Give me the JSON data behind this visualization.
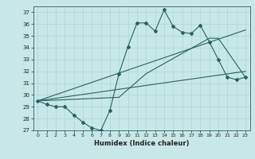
{
  "xlabel": "Humidex (Indice chaleur)",
  "ylabel": "",
  "xlim": [
    -0.5,
    23.5
  ],
  "ylim": [
    27,
    37.5
  ],
  "yticks": [
    27,
    28,
    29,
    30,
    31,
    32,
    33,
    34,
    35,
    36,
    37
  ],
  "xticks": [
    0,
    1,
    2,
    3,
    4,
    5,
    6,
    7,
    8,
    9,
    10,
    11,
    12,
    13,
    14,
    15,
    16,
    17,
    18,
    19,
    20,
    21,
    22,
    23
  ],
  "bg_color": "#c8e8e8",
  "line_color": "#2a6060",
  "grid_color": "#b0d8d8",
  "line1_x": [
    0,
    1,
    2,
    3,
    4,
    5,
    6,
    7,
    8,
    9,
    10,
    11,
    12,
    13,
    14,
    15,
    16,
    17,
    18,
    19,
    20,
    21,
    22,
    23
  ],
  "line1_y": [
    29.5,
    29.2,
    29.0,
    29.0,
    28.3,
    27.7,
    27.2,
    27.0,
    28.7,
    31.8,
    34.1,
    36.1,
    36.1,
    35.4,
    37.2,
    35.8,
    35.3,
    35.2,
    35.9,
    34.5,
    33.0,
    31.5,
    31.3,
    31.5
  ],
  "line2_x": [
    0,
    23
  ],
  "line2_y": [
    29.5,
    32.0
  ],
  "line3_x": [
    0,
    23
  ],
  "line3_y": [
    29.5,
    35.5
  ],
  "line4_x": [
    0,
    9,
    12,
    19,
    20,
    23
  ],
  "line4_y": [
    29.5,
    29.8,
    31.8,
    34.8,
    34.8,
    31.5
  ]
}
